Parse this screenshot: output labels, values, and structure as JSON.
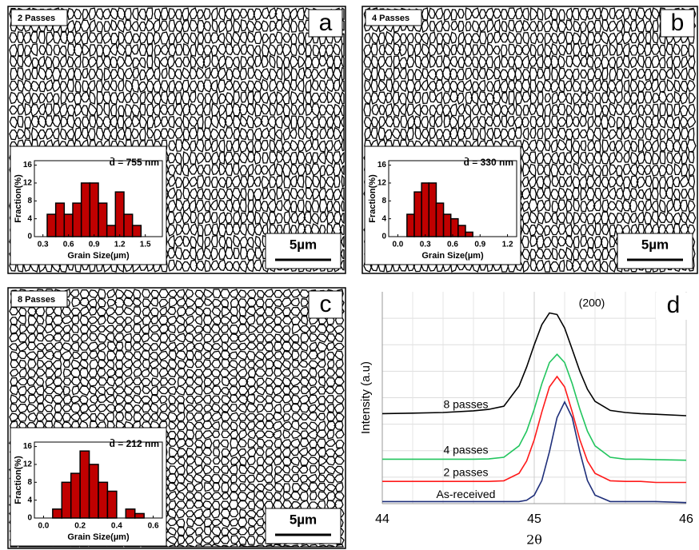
{
  "chart_data": [
    {
      "type": "histogram",
      "title": "2 Passes",
      "panel": "a",
      "annotation": "d̄ = 755 nm",
      "scale_bar": "5µm",
      "xlabel": "Grain Size(µm)",
      "ylabel": "Fraction(%)",
      "color": "#c00000",
      "bins": [
        0.35,
        0.45,
        0.55,
        0.65,
        0.75,
        0.85,
        0.95,
        1.05,
        1.15,
        1.25,
        1.35,
        1.45
      ],
      "values": [
        5,
        7.5,
        5,
        7.5,
        12,
        12,
        7.5,
        2.5,
        10,
        5,
        2.5
      ],
      "xlim": [
        0.2,
        1.7
      ],
      "ylim": [
        0,
        17
      ],
      "xticks": [
        0.3,
        0.6,
        0.9,
        1.2,
        1.5
      ],
      "yticks": [
        0,
        4,
        8,
        12,
        16
      ]
    },
    {
      "type": "histogram",
      "title": "4 Passes",
      "panel": "b",
      "annotation": "d̄ = 330 nm",
      "scale_bar": "5µm",
      "xlabel": "Grain Size(µm)",
      "ylabel": "Fraction(%)",
      "color": "#c00000",
      "bins": [
        0.1,
        0.18,
        0.26,
        0.34,
        0.42,
        0.5,
        0.58,
        0.66,
        0.74,
        0.82
      ],
      "values": [
        5,
        10,
        12,
        12,
        7.5,
        5,
        4,
        2.5,
        1
      ],
      "xlim": [
        -0.1,
        1.3
      ],
      "ylim": [
        0,
        17
      ],
      "xticks": [
        {
          "value": 0,
          "label": "0.0"
        },
        0.3,
        0.6,
        0.9,
        1.2
      ],
      "yticks": [
        0,
        4,
        8,
        12,
        16
      ]
    },
    {
      "type": "histogram",
      "title": "8 Passes",
      "panel": "c",
      "annotation": "d̄ = 212 nm",
      "scale_bar": "5µm",
      "xlabel": "Grain Size(µm)",
      "ylabel": "Fraction(%)",
      "color": "#c00000",
      "bins": [
        0.05,
        0.1,
        0.15,
        0.2,
        0.25,
        0.3,
        0.35,
        0.4,
        0.45,
        0.5,
        0.55
      ],
      "values": [
        2,
        8,
        10,
        15,
        12,
        8,
        6,
        0,
        2,
        1
      ],
      "xlim": [
        -0.05,
        0.65
      ],
      "ylim": [
        0,
        17
      ],
      "xticks": [
        {
          "value": 0,
          "label": "0.0"
        },
        0.2,
        0.4,
        0.6
      ],
      "yticks": [
        0,
        4,
        8,
        12,
        16
      ]
    },
    {
      "type": "line",
      "panel": "d",
      "annotation": "(200)",
      "xlabel": "2θ",
      "ylabel": "Intensity (a.u)",
      "x": [
        44,
        44.2,
        44.4,
        44.6,
        44.7,
        44.8,
        44.9,
        44.95,
        45,
        45.05,
        45.1,
        45.15,
        45.2,
        45.25,
        45.3,
        45.35,
        45.4,
        45.5,
        45.6,
        45.7,
        45.8,
        46
      ],
      "xlim": [
        44,
        46
      ],
      "xticks": [
        44,
        45,
        46
      ],
      "ylim": [
        0,
        10
      ],
      "series": [
        {
          "name": "8 passes",
          "color": "#000000",
          "values": [
            4.25,
            4.27,
            4.3,
            4.38,
            4.45,
            4.6,
            5.55,
            6.45,
            7.5,
            8.45,
            9.0,
            8.93,
            8.29,
            7.28,
            6.25,
            5.4,
            4.83,
            4.4,
            4.3,
            4.25,
            4.22,
            4.15
          ]
        },
        {
          "name": "4 passes",
          "color": "#22c55e",
          "values": [
            2.1,
            2.1,
            2.1,
            2.1,
            2.11,
            2.19,
            2.73,
            3.42,
            4.46,
            5.66,
            6.66,
            7.05,
            6.66,
            5.66,
            4.46,
            3.42,
            2.73,
            2.19,
            2.1,
            2.1,
            2.08,
            2.05
          ]
        },
        {
          "name": "2 passes",
          "color": "#ff1a1a",
          "values": [
            1.05,
            1.05,
            1.05,
            1.05,
            1.05,
            1.08,
            1.43,
            2.01,
            3.02,
            4.33,
            5.51,
            6.0,
            5.51,
            4.33,
            3.02,
            2.01,
            1.43,
            1.08,
            1.05,
            1.05,
            1.0,
            1.0
          ]
        },
        {
          "name": "As-received",
          "color": "#1f2f7a",
          "values": [
            0.1,
            0.1,
            0.1,
            0.1,
            0.1,
            0.1,
            0.1,
            0.16,
            0.4,
            1.09,
            2.45,
            4.06,
            4.8,
            4.06,
            2.45,
            1.09,
            0.4,
            0.1,
            0.1,
            0.1,
            0.1,
            0.05
          ]
        }
      ]
    }
  ]
}
